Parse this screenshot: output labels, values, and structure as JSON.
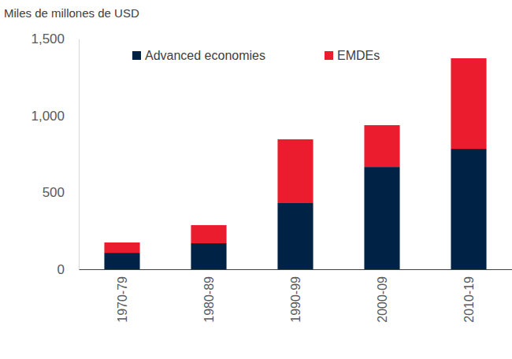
{
  "chart_data": {
    "type": "bar",
    "stacked": true,
    "grid": false,
    "legend": "top",
    "y_label": "Miles de millones de USD",
    "categories": [
      "1970-79",
      "1980-89",
      "1990-99",
      "2000-09",
      "2010-19"
    ],
    "series": [
      {
        "name": "Advanced economies",
        "color": "#002345",
        "values": [
          107,
          169,
          430,
          665,
          783
        ]
      },
      {
        "name": "EMDEs",
        "color": "#eb1c2d",
        "values": [
          67,
          118,
          415,
          272,
          589
        ]
      }
    ],
    "ylim": [
      0,
      1500
    ],
    "yticks": [
      0,
      500,
      {
        "value": 1000,
        "label": "1,000"
      },
      {
        "value": 1500,
        "label": "1,500"
      }
    ]
  }
}
